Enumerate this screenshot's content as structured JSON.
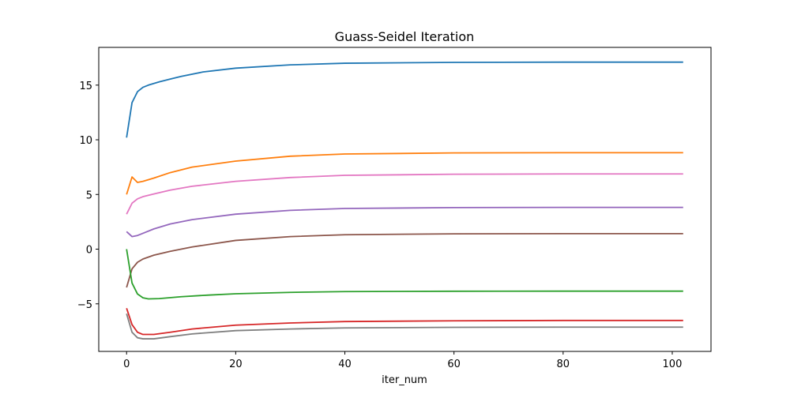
{
  "chart_data": {
    "type": "line",
    "title": "Guass-Seidel Iteration",
    "xlabel": "iter_num",
    "ylabel": "",
    "xlim": [
      -5.1,
      107.1
    ],
    "ylim": [
      -9.35,
      18.45
    ],
    "xticks": [
      0,
      20,
      40,
      60,
      80,
      100
    ],
    "yticks": [
      -5,
      0,
      5,
      10,
      15
    ],
    "ytick_labels": [
      "−5",
      "0",
      "5",
      "10",
      "15"
    ],
    "grid": false,
    "legend": "none",
    "series": [
      {
        "color": "#1f77b4",
        "points": [
          [
            0,
            10.2
          ],
          [
            1,
            13.4
          ],
          [
            2,
            14.4
          ],
          [
            3,
            14.8
          ],
          [
            4,
            15.0
          ],
          [
            6,
            15.3
          ],
          [
            8,
            15.55
          ],
          [
            10,
            15.8
          ],
          [
            14,
            16.2
          ],
          [
            20,
            16.55
          ],
          [
            30,
            16.85
          ],
          [
            40,
            17.0
          ],
          [
            60,
            17.08
          ],
          [
            80,
            17.1
          ],
          [
            102,
            17.1
          ]
        ]
      },
      {
        "color": "#ff7f0e",
        "points": [
          [
            0,
            5.0
          ],
          [
            1,
            6.6
          ],
          [
            2,
            6.1
          ],
          [
            3,
            6.2
          ],
          [
            5,
            6.5
          ],
          [
            8,
            7.0
          ],
          [
            12,
            7.5
          ],
          [
            20,
            8.05
          ],
          [
            30,
            8.5
          ],
          [
            40,
            8.7
          ],
          [
            60,
            8.8
          ],
          [
            80,
            8.82
          ],
          [
            102,
            8.82
          ]
        ]
      },
      {
        "color": "#e377c2",
        "points": [
          [
            0,
            3.2
          ],
          [
            1,
            4.2
          ],
          [
            2,
            4.6
          ],
          [
            3,
            4.8
          ],
          [
            5,
            5.05
          ],
          [
            8,
            5.4
          ],
          [
            12,
            5.75
          ],
          [
            20,
            6.2
          ],
          [
            30,
            6.55
          ],
          [
            40,
            6.75
          ],
          [
            60,
            6.85
          ],
          [
            80,
            6.88
          ],
          [
            102,
            6.88
          ]
        ]
      },
      {
        "color": "#9467bd",
        "points": [
          [
            0,
            1.6
          ],
          [
            1,
            1.15
          ],
          [
            2,
            1.25
          ],
          [
            3,
            1.45
          ],
          [
            5,
            1.85
          ],
          [
            8,
            2.3
          ],
          [
            12,
            2.7
          ],
          [
            20,
            3.2
          ],
          [
            30,
            3.55
          ],
          [
            40,
            3.72
          ],
          [
            60,
            3.8
          ],
          [
            80,
            3.82
          ],
          [
            102,
            3.82
          ]
        ]
      },
      {
        "color": "#8c564b",
        "points": [
          [
            0,
            -3.5
          ],
          [
            1,
            -1.8
          ],
          [
            2,
            -1.2
          ],
          [
            3,
            -0.9
          ],
          [
            5,
            -0.55
          ],
          [
            8,
            -0.2
          ],
          [
            12,
            0.2
          ],
          [
            20,
            0.8
          ],
          [
            30,
            1.15
          ],
          [
            40,
            1.32
          ],
          [
            60,
            1.4
          ],
          [
            80,
            1.42
          ],
          [
            102,
            1.42
          ]
        ]
      },
      {
        "color": "#2ca02c",
        "points": [
          [
            0,
            0.0
          ],
          [
            1,
            -3.1
          ],
          [
            2,
            -4.1
          ],
          [
            3,
            -4.45
          ],
          [
            4,
            -4.55
          ],
          [
            6,
            -4.52
          ],
          [
            10,
            -4.35
          ],
          [
            15,
            -4.2
          ],
          [
            20,
            -4.08
          ],
          [
            30,
            -3.95
          ],
          [
            40,
            -3.88
          ],
          [
            60,
            -3.85
          ],
          [
            80,
            -3.84
          ],
          [
            102,
            -3.84
          ]
        ]
      },
      {
        "color": "#d62728",
        "points": [
          [
            0,
            -5.4
          ],
          [
            1,
            -6.9
          ],
          [
            2,
            -7.6
          ],
          [
            3,
            -7.8
          ],
          [
            5,
            -7.8
          ],
          [
            8,
            -7.6
          ],
          [
            12,
            -7.3
          ],
          [
            20,
            -6.95
          ],
          [
            30,
            -6.75
          ],
          [
            40,
            -6.62
          ],
          [
            60,
            -6.55
          ],
          [
            80,
            -6.52
          ],
          [
            102,
            -6.52
          ]
        ]
      },
      {
        "color": "#7f7f7f",
        "points": [
          [
            0,
            -5.9
          ],
          [
            1,
            -7.6
          ],
          [
            2,
            -8.1
          ],
          [
            3,
            -8.2
          ],
          [
            5,
            -8.2
          ],
          [
            8,
            -8.0
          ],
          [
            12,
            -7.75
          ],
          [
            20,
            -7.45
          ],
          [
            30,
            -7.3
          ],
          [
            40,
            -7.2
          ],
          [
            60,
            -7.15
          ],
          [
            80,
            -7.13
          ],
          [
            102,
            -7.13
          ]
        ]
      }
    ]
  }
}
